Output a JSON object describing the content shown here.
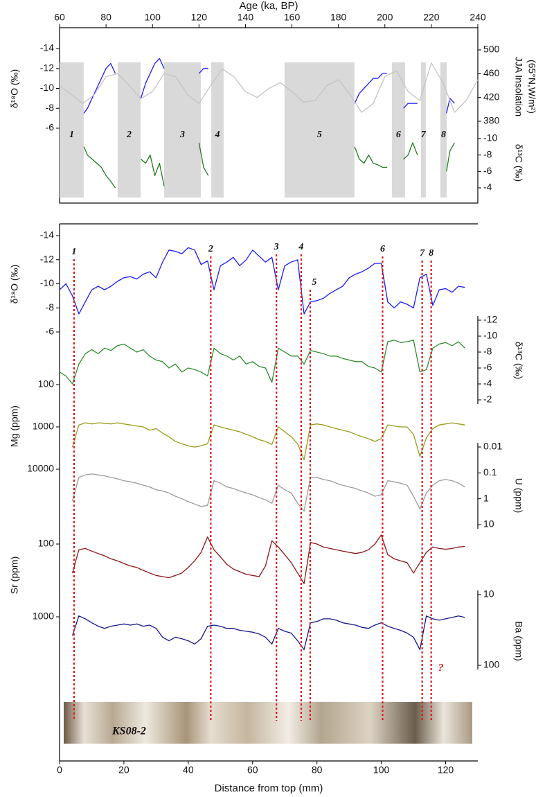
{
  "chart_data": [
    {
      "type": "line",
      "x_label": "Age (ka, BP)",
      "xlim": [
        60,
        240
      ],
      "xticks": [
        60,
        80,
        100,
        120,
        140,
        160,
        180,
        200,
        220,
        240
      ],
      "shaded_intervals": [
        {
          "label": "1",
          "range": [
            60,
            70.4
          ]
        },
        {
          "label": "2",
          "range": [
            85,
            94.9
          ]
        },
        {
          "label": "3",
          "range": [
            105,
            120.8
          ]
        },
        {
          "label": "4",
          "range": [
            125.3,
            130.6
          ]
        },
        {
          "label": "5",
          "range": [
            156.8,
            186.9
          ]
        },
        {
          "label": "6",
          "range": [
            203,
            208.7
          ]
        },
        {
          "label": "7",
          "range": [
            215.5,
            217.6
          ]
        },
        {
          "label": "8",
          "range": [
            223.9,
            226.6
          ]
        }
      ],
      "x": [
        70.5,
        72,
        74,
        76,
        78,
        80,
        82,
        84,
        90,
        95,
        97,
        99,
        101,
        103,
        105,
        112,
        120,
        122,
        124,
        150,
        187,
        189,
        191,
        193,
        195,
        197,
        199,
        201,
        205,
        208,
        210,
        212,
        214,
        220,
        226.5,
        228,
        230
      ],
      "series": [
        {
          "y_label": "δ¹⁸O (‰)",
          "side": "left",
          "color": "#1a1aff",
          "ylim": [
            -14,
            -6
          ],
          "inverted": true,
          "yticks": [
            -14,
            -12,
            -10,
            -8,
            -6
          ],
          "values": [
            -7.5,
            -8,
            -9,
            -10,
            -11,
            -12,
            -12.5,
            -11.5,
            null,
            -9,
            -10.5,
            -11.5,
            -12.5,
            -13,
            -12,
            null,
            -11.5,
            -12,
            -12,
            null,
            -8.5,
            -9.5,
            -10,
            -10.5,
            -11,
            -11,
            -11.5,
            -11.5,
            null,
            -8,
            -8.5,
            -8.5,
            -8.5,
            null,
            -7.5,
            -9,
            -8.5
          ]
        },
        {
          "y_label": "JJA Insolation",
          "y_label_2": "(65°N,W/m²)",
          "side": "right",
          "color": "#c4c4c4",
          "ylim": [
            380,
            500
          ],
          "yticks": [
            380,
            420,
            460,
            500
          ],
          "x": [
            60,
            65,
            70,
            75,
            80,
            85,
            90,
            95,
            100,
            105,
            110,
            115,
            120,
            125,
            130,
            135,
            140,
            145,
            150,
            155,
            160,
            165,
            170,
            175,
            180,
            185,
            190,
            195,
            200,
            205,
            210,
            215,
            220,
            225,
            230,
            235,
            240
          ],
          "values": [
            440,
            425,
            410,
            425,
            455,
            460,
            440,
            418,
            430,
            460,
            455,
            425,
            410,
            440,
            468,
            455,
            430,
            420,
            435,
            445,
            430,
            412,
            415,
            440,
            450,
            425,
            395,
            410,
            455,
            465,
            430,
            415,
            478,
            445,
            395,
            415,
            450
          ]
        },
        {
          "y_label": "δ¹³C (‰)",
          "side": "right",
          "color": "#1f7a1f",
          "ylim": [
            -10,
            -4
          ],
          "inverted": true,
          "yticks": [
            -10,
            -8,
            -6,
            -4
          ],
          "values": [
            -9,
            -8,
            -7.5,
            -7,
            -6.5,
            -5.5,
            -4.8,
            -4,
            null,
            -7.5,
            -7,
            -8,
            -5.5,
            -7,
            -4.2,
            null,
            -9.5,
            -6.5,
            -5.5,
            null,
            -9,
            -7.5,
            -7,
            -8,
            -7,
            -6.8,
            -6.5,
            -6.5,
            null,
            -7.5,
            -8,
            -9.5,
            -8,
            null,
            -6,
            -8.5,
            -9.5
          ]
        }
      ]
    },
    {
      "type": "line",
      "x_label": "Distance from top (mm)",
      "xlim": [
        0,
        130
      ],
      "xticks": [
        0,
        20,
        40,
        60,
        80,
        100,
        120
      ],
      "events": [
        {
          "label": "1",
          "x": 4.5
        },
        {
          "label": "2",
          "x": 47
        },
        {
          "label": "3",
          "x": 67.4
        },
        {
          "label": "4",
          "x": 75.1
        },
        {
          "label": "5",
          "x": 77.9
        },
        {
          "label": "6",
          "x": 100.4
        },
        {
          "label": "7",
          "x": 112.7
        },
        {
          "label": "8",
          "x": 115.5
        }
      ],
      "annotation": "?",
      "sample_label": "KS08-2",
      "x": [
        0,
        2,
        4,
        6,
        8,
        10,
        12,
        14,
        16,
        18,
        20,
        22,
        24,
        26,
        28,
        30,
        32,
        34,
        36,
        38,
        40,
        42,
        44,
        46,
        48,
        50,
        52,
        54,
        56,
        58,
        60,
        62,
        64,
        66,
        68,
        70,
        72,
        74,
        76,
        78,
        80,
        82,
        84,
        86,
        88,
        90,
        92,
        94,
        96,
        98,
        100,
        102,
        104,
        106,
        108,
        110,
        112,
        114,
        116,
        118,
        120,
        122,
        124,
        126
      ],
      "series": [
        {
          "y_label": "δ¹⁸O (‰)",
          "side": "left",
          "color": "#1a1aff",
          "ylim": [
            -14,
            -6
          ],
          "inverted": true,
          "yticks": [
            -14,
            -12,
            -10,
            -8,
            -6
          ],
          "values": [
            -9.5,
            -10,
            -9,
            -7.5,
            -8.5,
            -9.5,
            -9.8,
            -9.5,
            -9.8,
            -10.2,
            -10.5,
            -10.6,
            -10.4,
            -10.8,
            -11,
            -10.5,
            -11.8,
            -12.8,
            -12.7,
            -12.5,
            -13,
            -12.8,
            -11.6,
            -11.9,
            -9.5,
            -11.5,
            -11.8,
            -12.2,
            -11.5,
            -12,
            -12.8,
            -12.3,
            -11.8,
            -12.2,
            -9.5,
            -11.5,
            -11.8,
            -12,
            -7.5,
            -8.5,
            -8.6,
            -8.8,
            -9.2,
            -9.5,
            -9.8,
            -10.5,
            -10.8,
            -11,
            -11.3,
            -11.7,
            -11.7,
            -8.5,
            -8,
            -8.5,
            -8.3,
            -8,
            -10.5,
            -10.8,
            -8.2,
            -9.5,
            -9.6,
            -9.3,
            -9.8,
            -9.7
          ]
        },
        {
          "y_label": "δ¹³C (‰)",
          "side": "right",
          "color": "#2e8b2e",
          "ylim": [
            -12,
            -2
          ],
          "inverted": true,
          "yticks": [
            -12,
            -10,
            -8,
            -6,
            -4,
            -2
          ],
          "values": [
            -5.5,
            -5,
            -4,
            -6.5,
            -7.8,
            -8.3,
            -7.8,
            -8.5,
            -8.2,
            -8.8,
            -9,
            -8.5,
            -8,
            -8.3,
            -7.5,
            -7,
            -6.8,
            -6,
            -6.5,
            -5.5,
            -6,
            -5.8,
            -5.5,
            -5,
            -8.5,
            -7.8,
            -7.5,
            -7,
            -7.5,
            -6.5,
            -6.8,
            -6.2,
            -6,
            -4.2,
            -8.5,
            -8,
            -7.5,
            -7.5,
            -6.5,
            -8.2,
            -8,
            -7.8,
            -7.5,
            -7.5,
            -7.2,
            -7,
            -6.8,
            -6.8,
            -6.2,
            -6,
            -5.5,
            -9.3,
            -9.5,
            -9.2,
            -9.3,
            -9.5,
            -5.5,
            -5.8,
            -8.5,
            -9,
            -9.2,
            -8.8,
            -9.3,
            -8.5
          ]
        },
        {
          "y_label": "Mg (ppm)",
          "side": "left",
          "color": "#9a9a1a",
          "ylim": [
            100,
            10000
          ],
          "log": true,
          "inverted": true,
          "yticks": [
            100,
            1000,
            10000
          ],
          "values": [
            null,
            null,
            3000,
            900,
            800,
            850,
            800,
            820,
            850,
            800,
            850,
            900,
            950,
            1000,
            1200,
            1100,
            1400,
            1700,
            2200,
            2500,
            2800,
            3000,
            2800,
            2500,
            900,
            1000,
            1100,
            1200,
            1300,
            1500,
            1700,
            2000,
            2200,
            2600,
            1000,
            1300,
            1700,
            2500,
            6000,
            900,
            850,
            900,
            1000,
            1100,
            1200,
            1300,
            1500,
            1700,
            1900,
            2200,
            1900,
            900,
            950,
            1000,
            1000,
            1500,
            5000,
            1800,
            1100,
            900,
            850,
            800,
            850,
            900
          ]
        },
        {
          "y_label": "U (ppm)",
          "side": "right",
          "color": "#9a9a9a",
          "ylim": [
            0.01,
            10
          ],
          "log": true,
          "inverted": true,
          "yticks": [
            0.01,
            0.1,
            1,
            10
          ],
          "values": [
            null,
            null,
            1.2,
            0.15,
            0.12,
            0.11,
            0.12,
            0.13,
            0.15,
            0.17,
            0.2,
            0.22,
            0.25,
            0.3,
            0.35,
            0.45,
            0.5,
            0.6,
            0.8,
            1,
            1.3,
            1.6,
            2,
            1.8,
            0.2,
            0.25,
            0.35,
            0.4,
            0.5,
            0.6,
            0.7,
            0.9,
            1.1,
            1.5,
            0.3,
            0.45,
            0.6,
            1.5,
            3,
            0.15,
            0.15,
            0.18,
            0.2,
            0.25,
            0.3,
            0.35,
            0.4,
            0.5,
            0.6,
            0.8,
            0.7,
            0.2,
            0.22,
            0.25,
            0.3,
            0.8,
            2.5,
            0.6,
            0.3,
            0.2,
            0.18,
            0.2,
            0.25,
            0.35
          ]
        },
        {
          "y_label": "Sr (ppm)",
          "side": "left",
          "color": "#8b1515",
          "ylim": [
            100,
            1000
          ],
          "log": true,
          "inverted": true,
          "yticks": [
            100,
            1000
          ],
          "values": [
            null,
            null,
            250,
            120,
            115,
            125,
            135,
            145,
            160,
            170,
            185,
            200,
            210,
            230,
            250,
            270,
            280,
            290,
            270,
            250,
            210,
            170,
            130,
            80,
            120,
            150,
            190,
            220,
            240,
            260,
            270,
            280,
            200,
            90,
            110,
            140,
            180,
            250,
            350,
            95,
            100,
            110,
            115,
            120,
            125,
            130,
            135,
            130,
            120,
            100,
            75,
            140,
            160,
            170,
            180,
            250,
            180,
            130,
            110,
            115,
            118,
            115,
            110,
            108
          ]
        },
        {
          "y_label": "Ba (ppm)",
          "side": "right",
          "color": "#15158b",
          "ylim": [
            10,
            100
          ],
          "log": true,
          "inverted": true,
          "yticks": [
            10,
            100
          ],
          "values": [
            null,
            null,
            38,
            20,
            22,
            25,
            28,
            30,
            28,
            27,
            26,
            27,
            26,
            28,
            27,
            30,
            40,
            45,
            40,
            42,
            45,
            50,
            42,
            28,
            27,
            28,
            30,
            30,
            32,
            33,
            34,
            36,
            40,
            50,
            30,
            33,
            35,
            45,
            60,
            25,
            24,
            22,
            22,
            23,
            25,
            26,
            27,
            29,
            30,
            27,
            25,
            28,
            30,
            32,
            35,
            40,
            60,
            20,
            22,
            23,
            22,
            21,
            20,
            21
          ]
        }
      ]
    }
  ]
}
